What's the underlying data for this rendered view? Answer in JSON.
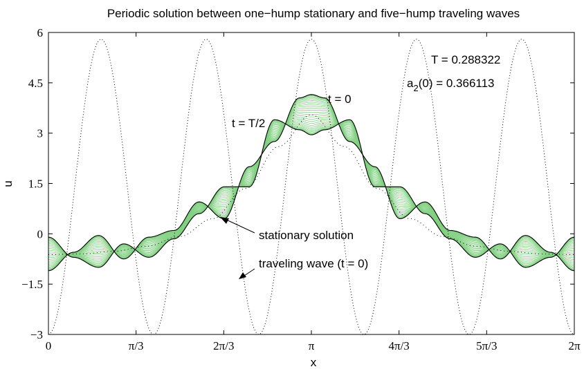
{
  "chart_data": {
    "type": "line",
    "title": "Periodic solution between one−hump stationary and five−hump traveling waves",
    "xlabel": "x",
    "ylabel": "u",
    "xlim": [
      0,
      6.283185
    ],
    "ylim": [
      -3,
      6
    ],
    "grid": false,
    "xticks": [
      {
        "value": 0,
        "label": "0"
      },
      {
        "value": 1.047198,
        "label": "π/3"
      },
      {
        "value": 2.094395,
        "label": "2π/3"
      },
      {
        "value": 3.141593,
        "label": "π"
      },
      {
        "value": 4.18879,
        "label": "4π/3"
      },
      {
        "value": 5.235988,
        "label": "5π/3"
      },
      {
        "value": 6.283185,
        "label": "2π"
      }
    ],
    "yticks": [
      {
        "value": -3,
        "label": "−3"
      },
      {
        "value": -1.5,
        "label": "−1.5"
      },
      {
        "value": 0,
        "label": "0"
      },
      {
        "value": 1.5,
        "label": "1.5"
      },
      {
        "value": 3,
        "label": "3"
      },
      {
        "value": 4.5,
        "label": "4.5"
      },
      {
        "value": 6,
        "label": "6"
      }
    ],
    "series": [
      {
        "name": "stationary solution",
        "x": [
          0,
          0.3927,
          0.7854,
          1.1781,
          1.5708,
          1.9635,
          2.3562,
          2.7489,
          3.1416,
          3.5343,
          3.927,
          4.3197,
          4.7124,
          5.1051,
          5.4978,
          5.8905,
          6.2832
        ],
        "y": [
          -0.62,
          -0.6,
          -0.52,
          -0.37,
          -0.08,
          0.45,
          1.35,
          2.6,
          3.55,
          2.6,
          1.35,
          0.45,
          -0.08,
          -0.37,
          -0.52,
          -0.6,
          -0.62
        ]
      },
      {
        "name": "traveling wave (t = 0)",
        "x": [
          0,
          0.6283,
          1.2566,
          1.885,
          2.5133,
          3.1416,
          3.7699,
          4.3982,
          5.0265,
          5.6549,
          6.2832
        ],
        "y": [
          -3,
          5.8,
          -3,
          5.8,
          -3,
          5.8,
          -3,
          5.8,
          -3,
          5.8,
          -3
        ]
      },
      {
        "name": "t = 0",
        "x": [
          0,
          0.3,
          0.6,
          0.9,
          1.2,
          1.5,
          1.8,
          2.1,
          2.4,
          2.7,
          3.0,
          3.1416,
          3.3,
          3.6,
          3.9,
          4.2,
          4.5,
          4.8,
          5.1,
          5.4,
          5.7,
          6.0,
          6.2832
        ],
        "y": [
          -1.1,
          -0.55,
          -0.05,
          -0.75,
          -0.1,
          0.1,
          0.95,
          0.45,
          2.0,
          2.75,
          4.05,
          4.15,
          4.05,
          2.75,
          2.0,
          0.45,
          0.95,
          0.1,
          -0.1,
          -0.75,
          -0.05,
          -0.55,
          -1.1
        ]
      },
      {
        "name": "t = T/2",
        "x": [
          0,
          0.3,
          0.6,
          0.9,
          1.2,
          1.5,
          1.8,
          2.1,
          2.4,
          2.7,
          3.0,
          3.1416,
          3.3,
          3.6,
          3.9,
          4.2,
          4.5,
          4.8,
          5.1,
          5.4,
          5.7,
          6.0,
          6.2832
        ],
        "y": [
          -0.1,
          -0.7,
          -1.0,
          -0.3,
          -0.7,
          -0.15,
          0.6,
          1.4,
          1.4,
          3.4,
          3.1,
          2.95,
          3.1,
          3.4,
          1.4,
          1.4,
          0.6,
          -0.15,
          -0.7,
          -0.3,
          -1.0,
          -0.7,
          -0.1
        ]
      }
    ],
    "annotations": {
      "period": "T = 0.288322",
      "a2_main": "a",
      "a2_sub": "2",
      "a2_rest": "(0) = 0.366113",
      "t0": "t = 0",
      "tHalf": "t = T/2",
      "stationary": "stationary solution",
      "traveling": "traveling wave (t = 0)"
    },
    "colors": {
      "envelope": "#7fcf7f",
      "curve": "#000000",
      "traveling": "#000000"
    }
  }
}
